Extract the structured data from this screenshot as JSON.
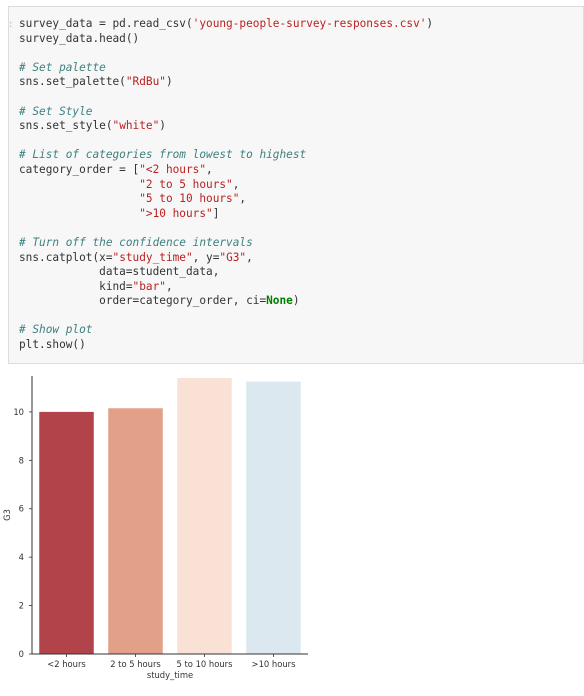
{
  "code_cell": {
    "lines": [
      [
        {
          "t": "survey_data = pd.read_csv(",
          "c": "plain"
        },
        {
          "t": "'young-people-survey-responses.csv'",
          "c": "str"
        },
        {
          "t": ")",
          "c": "plain"
        }
      ],
      [
        {
          "t": "survey_data.head()",
          "c": "plain"
        }
      ],
      [],
      [
        {
          "t": "# Set palette",
          "c": "cmt"
        }
      ],
      [
        {
          "t": "sns.set_palette(",
          "c": "plain"
        },
        {
          "t": "\"RdBu\"",
          "c": "str"
        },
        {
          "t": ")",
          "c": "plain"
        }
      ],
      [],
      [
        {
          "t": "# Set Style",
          "c": "cmt"
        }
      ],
      [
        {
          "t": "sns.set_style(",
          "c": "plain"
        },
        {
          "t": "\"white\"",
          "c": "str"
        },
        {
          "t": ")",
          "c": "plain"
        }
      ],
      [],
      [
        {
          "t": "# List of categories from lowest to highest",
          "c": "cmt"
        }
      ],
      [
        {
          "t": "category_order = [",
          "c": "plain"
        },
        {
          "t": "\"<2 hours\"",
          "c": "str"
        },
        {
          "t": ",",
          "c": "plain"
        }
      ],
      [
        {
          "t": "                  ",
          "c": "plain"
        },
        {
          "t": "\"2 to 5 hours\"",
          "c": "str"
        },
        {
          "t": ",",
          "c": "plain"
        }
      ],
      [
        {
          "t": "                  ",
          "c": "plain"
        },
        {
          "t": "\"5 to 10 hours\"",
          "c": "str"
        },
        {
          "t": ",",
          "c": "plain"
        }
      ],
      [
        {
          "t": "                  ",
          "c": "plain"
        },
        {
          "t": "\">10 hours\"",
          "c": "str"
        },
        {
          "t": "]",
          "c": "plain"
        }
      ],
      [],
      [
        {
          "t": "# Turn off the confidence intervals",
          "c": "cmt"
        }
      ],
      [
        {
          "t": "sns.catplot(x=",
          "c": "plain"
        },
        {
          "t": "\"study_time\"",
          "c": "str"
        },
        {
          "t": ", y=",
          "c": "plain"
        },
        {
          "t": "\"G3\"",
          "c": "str"
        },
        {
          "t": ",",
          "c": "plain"
        }
      ],
      [
        {
          "t": "            data=student_data,",
          "c": "plain"
        }
      ],
      [
        {
          "t": "            kind=",
          "c": "plain"
        },
        {
          "t": "\"bar\"",
          "c": "str"
        },
        {
          "t": ",",
          "c": "plain"
        }
      ],
      [
        {
          "t": "            order=category_order, ci=",
          "c": "plain"
        },
        {
          "t": "None",
          "c": "kw"
        },
        {
          "t": ")",
          "c": "plain"
        }
      ],
      [],
      [
        {
          "t": "# Show plot",
          "c": "cmt"
        }
      ],
      [
        {
          "t": "plt.show()",
          "c": "plain"
        }
      ]
    ]
  },
  "chart_data": {
    "type": "bar",
    "categories": [
      "<2 hours",
      "2 to 5 hours",
      "5 to 10 hours",
      ">10 hours"
    ],
    "values": [
      10.0,
      10.15,
      11.4,
      11.25
    ],
    "colors": [
      "#b2434a",
      "#e1a087",
      "#f9e2d5",
      "#dce8ef"
    ],
    "xlabel": "study_time",
    "ylabel": "G3",
    "yticks": [
      0,
      2,
      4,
      6,
      8,
      10
    ],
    "ylim": [
      0,
      11.4
    ],
    "grid": false,
    "spines": "left-bottom"
  }
}
